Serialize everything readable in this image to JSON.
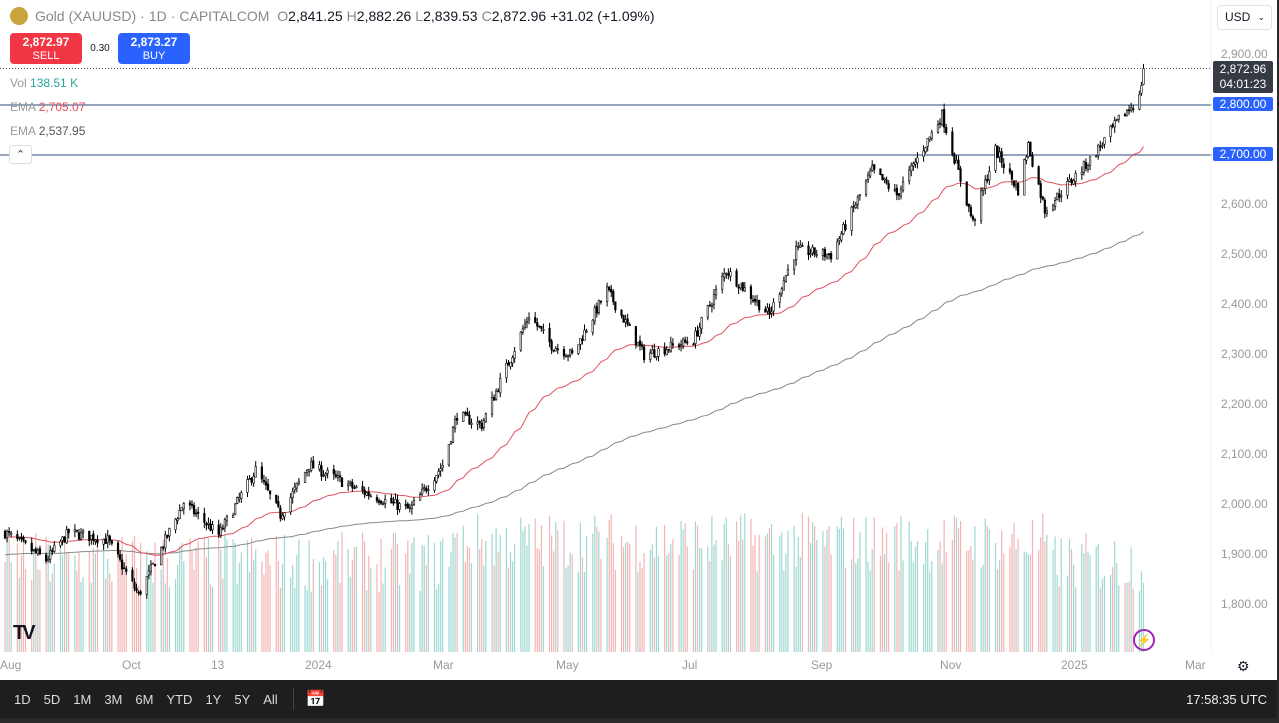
{
  "header": {
    "symbol": "Gold (XAUUSD)",
    "interval": "1D",
    "exchange": "CAPITALCOM",
    "sep": "·",
    "ohlc": {
      "o_label": "O",
      "o": "2,841.25",
      "h_label": "H",
      "h": "2,882.26",
      "l_label": "L",
      "l": "2,839.53",
      "c_label": "C",
      "c": "2,872.96",
      "change": "+31.02 (+1.09%)"
    }
  },
  "trade": {
    "sell_price": "2,872.97",
    "sell_label": "SELL",
    "spread": "0.30",
    "buy_price": "2,873.27",
    "buy_label": "BUY"
  },
  "indicators": [
    {
      "name": "Vol",
      "value": "138.51 K",
      "color": "#26a69a"
    },
    {
      "name": "EMA",
      "value": "2,705.07",
      "color": "#e84e5c"
    },
    {
      "name": "EMA",
      "value": "2,537.95",
      "color": "#555555"
    }
  ],
  "currency": "USD",
  "price_axis": {
    "labels": [
      "2,900.00",
      "2,800.00",
      "2,700.00",
      "2,600.00",
      "2,500.00",
      "2,400.00",
      "2,300.00",
      "2,200.00",
      "2,100.00",
      "2,000.00",
      "1,900.00",
      "1,800.00"
    ],
    "last_price": "2,872.96",
    "countdown": "04:01:23",
    "hlines": [
      "2,800.00",
      "2,700.00"
    ]
  },
  "time_axis": [
    "Aug",
    "Oct",
    "13",
    "2024",
    "Mar",
    "May",
    "Jul",
    "Sep",
    "Nov",
    "2025",
    "Mar"
  ],
  "bottom": {
    "ranges": [
      "1D",
      "5D",
      "1M",
      "3M",
      "6M",
      "YTD",
      "1Y",
      "5Y",
      "All"
    ],
    "clock": "17:58:35 UTC"
  },
  "colors": {
    "up_volume": "#9fd8d2",
    "down_volume": "#f4b4b4",
    "ema_fast": "#e0525d",
    "ema_slow": "#888888",
    "hline": "#2a4a7a",
    "tag": "#2962ff"
  },
  "chart_data": {
    "type": "candlestick",
    "ylim": [
      1780,
      2910
    ],
    "waypoints": [
      [
        "2023-08-01",
        1945
      ],
      [
        "2023-08-21",
        1890
      ],
      [
        "2023-09-01",
        1945
      ],
      [
        "2023-09-20",
        1930
      ],
      [
        "2023-10-05",
        1820
      ],
      [
        "2023-10-27",
        2005
      ],
      [
        "2023-11-13",
        1940
      ],
      [
        "2023-12-01",
        2070
      ],
      [
        "2023-12-13",
        1980
      ],
      [
        "2023-12-27",
        2080
      ],
      [
        "2024-01-20",
        2030
      ],
      [
        "2024-02-14",
        1990
      ],
      [
        "2024-03-01",
        2080
      ],
      [
        "2024-03-08",
        2180
      ],
      [
        "2024-03-20",
        2160
      ],
      [
        "2024-04-12",
        2380
      ],
      [
        "2024-04-23",
        2320
      ],
      [
        "2024-05-03",
        2300
      ],
      [
        "2024-05-20",
        2430
      ],
      [
        "2024-06-07",
        2300
      ],
      [
        "2024-07-01",
        2330
      ],
      [
        "2024-07-17",
        2470
      ],
      [
        "2024-08-07",
        2380
      ],
      [
        "2024-08-20",
        2510
      ],
      [
        "2024-09-06",
        2500
      ],
      [
        "2024-09-26",
        2670
      ],
      [
        "2024-10-08",
        2620
      ],
      [
        "2024-10-30",
        2780
      ],
      [
        "2024-11-14",
        2565
      ],
      [
        "2024-11-25",
        2710
      ],
      [
        "2024-12-06",
        2630
      ],
      [
        "2024-12-11",
        2720
      ],
      [
        "2024-12-19",
        2590
      ],
      [
        "2025-01-10",
        2690
      ],
      [
        "2025-01-24",
        2770
      ],
      [
        "2025-02-03",
        2815
      ],
      [
        "2025-02-05",
        2873
      ]
    ]
  }
}
